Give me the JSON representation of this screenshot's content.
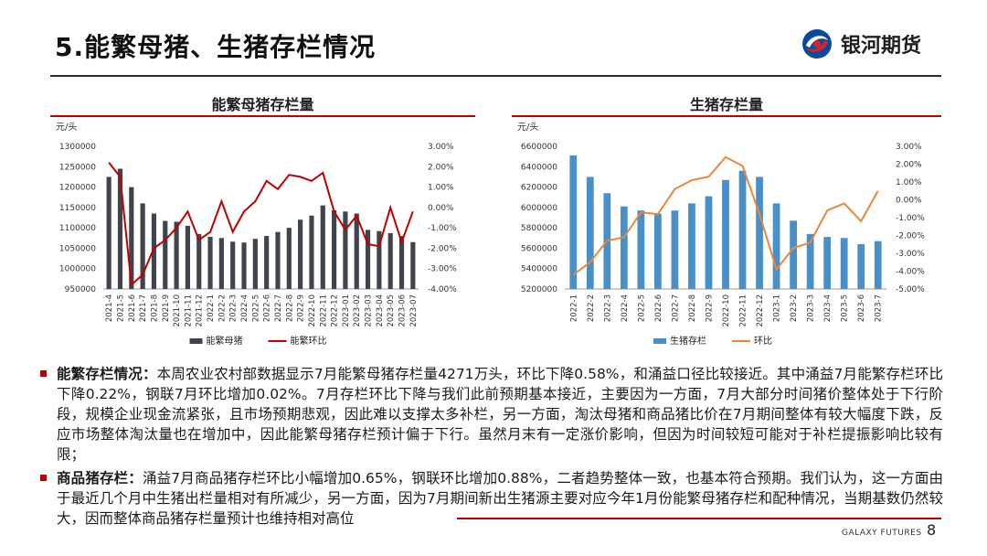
{
  "slide": {
    "title": "5.能繁母猪、生猪存栏情况",
    "brand_name": "银河期货",
    "footer_brand": "GALAXY FUTURES",
    "page_number": "8",
    "colors": {
      "accent_red": "#c00000",
      "brand_red": "#d7222c",
      "brand_blue": "#0a4a9c"
    }
  },
  "chart_data": [
    {
      "type": "bar",
      "title": "能繁母猪存栏量",
      "ylabel": "元/头",
      "categories": [
        "2021-4",
        "2021-5",
        "2021-6",
        "2021-7",
        "2021-8",
        "2021-9",
        "2021-10",
        "2021-11",
        "2021-12",
        "2022-1",
        "2022-2",
        "2022-3",
        "2022-4",
        "2022-5",
        "2022-6",
        "2022-7",
        "2022-8",
        "2022-9",
        "2022-10",
        "2022-11",
        "2022-12",
        "2023-01",
        "2023-02",
        "2023-03",
        "2023-04",
        "2023-05",
        "2023-06",
        "2023-07"
      ],
      "ylim": [
        950000,
        1300000
      ],
      "yticks": [
        "1300000",
        "1250000",
        "1200000",
        "1150000",
        "1100000",
        "1050000",
        "1000000",
        "950000"
      ],
      "y2lim": [
        -4.0,
        3.0
      ],
      "y2ticks": [
        "3.00%",
        "2.00%",
        "1.00%",
        "0.00%",
        "-1.00%",
        "-2.00%",
        "-3.00%",
        "-4.00%"
      ],
      "series": [
        {
          "name": "能繁母猪",
          "kind": "bar",
          "axis": "left",
          "color": "#40444c",
          "values": [
            1225000,
            1245000,
            1200000,
            1160000,
            1135000,
            1117000,
            1115000,
            1105000,
            1085000,
            1078000,
            1075000,
            1066000,
            1064000,
            1073000,
            1080000,
            1090000,
            1100000,
            1120000,
            1130000,
            1155000,
            1143000,
            1140000,
            1135000,
            1095000,
            1092000,
            1087000,
            1080000,
            1065000
          ]
        },
        {
          "name": "能繁环比",
          "kind": "line",
          "axis": "right",
          "color": "#c00000",
          "values": [
            2.2,
            1.5,
            -3.8,
            -3.3,
            -2.0,
            -1.6,
            -1.0,
            -0.2,
            -1.6,
            -1.2,
            0.3,
            -1.2,
            -0.2,
            0.3,
            1.3,
            0.9,
            1.6,
            1.5,
            1.3,
            1.7,
            -0.2,
            -1.1,
            -0.4,
            -1.8,
            -1.9,
            0.0,
            -1.7,
            -0.2
          ]
        }
      ],
      "legend": "bottom"
    },
    {
      "type": "bar",
      "title": "生猪存栏量",
      "ylabel": "元/头",
      "categories": [
        "2022-1",
        "2022-2",
        "2022-3",
        "2022-4",
        "2022-5",
        "2022-6",
        "2022-7",
        "2022-8",
        "2022-9",
        "2022-10",
        "2022-11",
        "2022-12",
        "2023-1",
        "2023-2",
        "2023-3",
        "2023-4",
        "2023-5",
        "2023-6",
        "2023-7"
      ],
      "ylim": [
        5200000,
        6600000
      ],
      "yticks": [
        "6600000",
        "6400000",
        "6200000",
        "6000000",
        "5800000",
        "5600000",
        "5400000",
        "5200000"
      ],
      "y2lim": [
        -5.0,
        3.0
      ],
      "y2ticks": [
        "3.00%",
        "2.00%",
        "1.00%",
        "0.00%",
        "-1.00%",
        "-2.00%",
        "-3.00%",
        "-4.00%",
        "-5.00%"
      ],
      "series": [
        {
          "name": "生猪存栏",
          "kind": "bar",
          "axis": "left",
          "color": "#4a90c8",
          "values": [
            6510000,
            6300000,
            6140000,
            6010000,
            5970000,
            5940000,
            5970000,
            6040000,
            6110000,
            6270000,
            6360000,
            6300000,
            6040000,
            5870000,
            5740000,
            5710000,
            5700000,
            5640000,
            5670000
          ]
        },
        {
          "name": "环比",
          "kind": "line",
          "axis": "right",
          "color": "#e8883c",
          "values": [
            -4.2,
            -3.5,
            -2.3,
            -2.1,
            -0.7,
            -0.8,
            0.6,
            1.1,
            1.3,
            2.4,
            1.9,
            -0.8,
            -3.9,
            -2.7,
            -2.4,
            -0.6,
            -0.2,
            -1.2,
            0.5
          ]
        }
      ],
      "legend": "bottom"
    }
  ],
  "bullets": [
    {
      "head": "能繁存栏情况：",
      "text": "本周农业农村部数据显示7月能繁母猪存栏量4271万头，环比下降0.58%，和涌益口径比较接近。其中涌益7月能繁存栏环比下降0.22%，钢联7月环比增加0.02%。7月存栏环比下降与我们此前预期基本接近，主要因为一方面，7月大部分时间猪价整体处于下行阶段，规模企业现金流紧张，且市场预期悲观，因此难以支撑太多补栏，另一方面，淘汰母猪和商品猪比价在7月期间整体有较大幅度下跌，反应市场整体淘汰量也在增加中，因此能繁母猪存栏预计偏于下行。虽然月末有一定涨价影响，但因为时间较短可能对于补栏提振影响比较有限；"
    },
    {
      "head": "商品猪存栏：",
      "text": "涌益7月商品猪存栏环比小幅增加0.65%，钢联环比增加0.88%，二者趋势整体一致，也基本符合预期。我们认为，这一方面由于最近几个月中生猪出栏量相对有所减少，另一方面，因为7月期间新出生猪源主要对应今年1月份能繁母猪存栏和配种情况，当期基数仍然较大，因而整体商品猪存栏量预计也维持相对高位"
    }
  ]
}
